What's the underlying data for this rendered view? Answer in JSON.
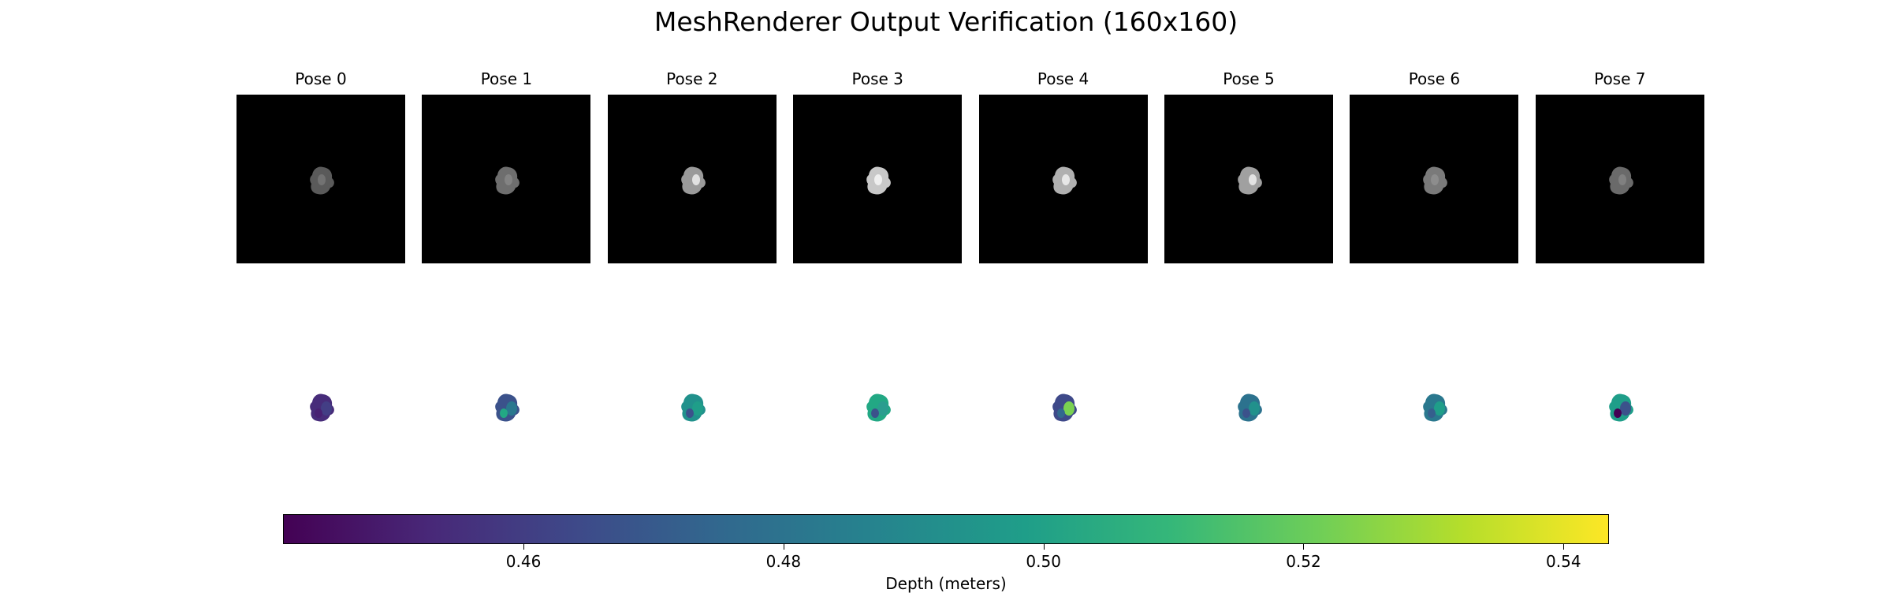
{
  "chart_data": {
    "type": "heatmap",
    "title": "MeshRenderer Output Verification (160x160)",
    "panels": [
      {
        "label": "Pose 0",
        "rgb_tone": "#5a5a5a",
        "depth_colors": [
          "#472c7a",
          "#433e85",
          "#482173"
        ]
      },
      {
        "label": "Pose 1",
        "rgb_tone": "#6e6e6e",
        "depth_colors": [
          "#3b528b",
          "#2a788e",
          "#22a884"
        ]
      },
      {
        "label": "Pose 2",
        "rgb_tone": "#9a9a9a",
        "depth_colors": [
          "#21918c",
          "#1f9e89",
          "#3b528b"
        ]
      },
      {
        "label": "Pose 3",
        "rgb_tone": "#c8c8c8",
        "depth_colors": [
          "#22a884",
          "#2a9d8f",
          "#3b528b"
        ]
      },
      {
        "label": "Pose 4",
        "rgb_tone": "#b0b0b0",
        "depth_colors": [
          "#3e4989",
          "#7ad151",
          "#31688e"
        ]
      },
      {
        "label": "Pose 5",
        "rgb_tone": "#a0a0a0",
        "depth_colors": [
          "#2c728e",
          "#21918c",
          "#3b528b"
        ]
      },
      {
        "label": "Pose 6",
        "rgb_tone": "#7a7a7a",
        "depth_colors": [
          "#2a788e",
          "#1f9e89",
          "#355f8d"
        ]
      },
      {
        "label": "Pose 7",
        "rgb_tone": "#6a6a6a",
        "depth_colors": [
          "#1f9e89",
          "#3b528b",
          "#440154"
        ]
      }
    ],
    "colorbar": {
      "label": "Depth (meters)",
      "colormap": "viridis",
      "range": [
        0.4415,
        0.5435
      ],
      "ticks": [
        0.46,
        0.48,
        0.5,
        0.52,
        0.54
      ],
      "tick_labels": [
        "0.46",
        "0.48",
        "0.50",
        "0.52",
        "0.54"
      ]
    }
  }
}
